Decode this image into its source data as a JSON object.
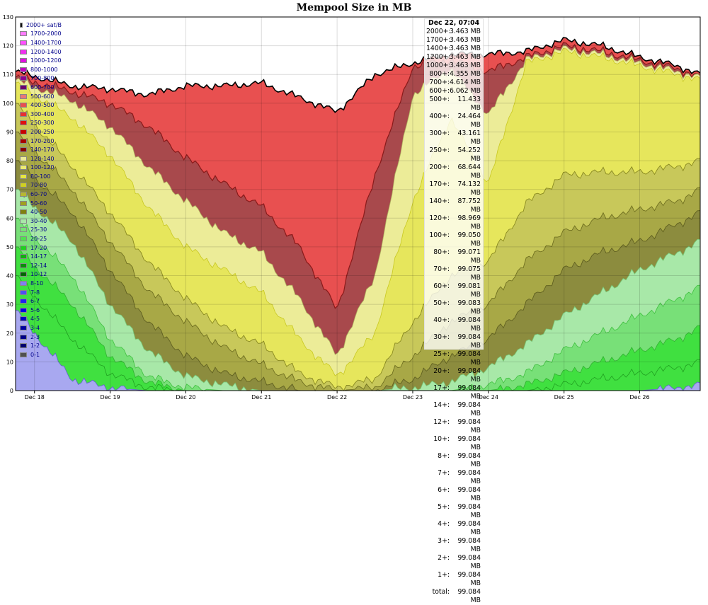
{
  "chart_data": {
    "type": "area",
    "title": "Mempool Size in MB",
    "ylim": [
      0,
      130
    ],
    "y_ticks": [
      0,
      10,
      20,
      30,
      40,
      50,
      60,
      70,
      80,
      90,
      100,
      110,
      120,
      130
    ],
    "x_tick_labels": [
      "Dec 18",
      "Dec 19",
      "Dec 20",
      "Dec 21",
      "Dec 22",
      "Dec 23",
      "Dec 24",
      "Dec 25",
      "Dec 26"
    ],
    "x_range_days": [
      17.75,
      26.8
    ],
    "grid": true,
    "legend_placement": "left",
    "stacked": true,
    "boundary_keypoints": {
      "x": [
        17.75,
        18.5,
        19.0,
        19.5,
        20.0,
        20.5,
        21.0,
        21.5,
        22.0,
        22.5,
        23.0,
        23.5,
        24.0,
        24.5,
        25.0,
        25.5,
        26.0,
        26.5,
        26.8
      ],
      "series": [
        {
          "key": "total",
          "values": [
            111,
            106,
            105,
            103,
            106,
            106,
            107,
            102,
            97,
            110,
            114,
            117,
            117,
            118,
            122,
            120,
            116,
            113,
            110
          ]
        },
        {
          "key": "f140",
          "values": [
            109,
            104,
            100,
            92,
            81,
            72,
            64,
            50,
            28,
            75,
            113,
            115,
            111,
            116,
            120,
            118,
            115,
            112,
            109
          ]
        },
        {
          "key": "f120",
          "values": [
            108,
            101,
            92,
            78,
            66,
            55,
            48,
            32,
            12,
            40,
            103,
            112,
            96,
            115,
            119,
            117,
            114,
            111,
            109
          ]
        },
        {
          "key": "f80",
          "values": [
            107,
            95,
            82,
            64,
            50,
            42,
            34,
            18,
            5,
            20,
            66,
            95,
            72,
            114,
            118,
            116,
            113,
            110,
            108
          ]
        },
        {
          "key": "f50",
          "values": [
            100,
            78,
            62,
            45,
            32,
            22,
            16,
            6,
            1,
            4,
            24,
            40,
            45,
            65,
            75,
            76,
            76,
            78,
            80
          ]
        },
        {
          "key": "f40",
          "values": [
            90,
            70,
            52,
            35,
            24,
            15,
            9,
            3,
            0,
            1,
            12,
            24,
            30,
            45,
            55,
            60,
            63,
            66,
            70
          ]
        },
        {
          "key": "f30",
          "values": [
            80,
            62,
            42,
            24,
            12,
            6,
            3,
            0,
            0,
            0,
            4,
            12,
            18,
            30,
            42,
            48,
            52,
            58,
            62
          ]
        },
        {
          "key": "f20",
          "values": [
            70,
            52,
            30,
            14,
            5,
            2,
            0,
            0,
            0,
            0,
            1,
            3,
            8,
            16,
            26,
            34,
            42,
            48,
            52
          ]
        },
        {
          "key": "f10",
          "values": [
            60,
            40,
            18,
            5,
            1,
            0,
            0,
            0,
            0,
            0,
            0,
            0,
            2,
            6,
            14,
            20,
            26,
            32,
            36
          ]
        },
        {
          "key": "f8",
          "values": [
            50,
            30,
            12,
            3,
            0,
            0,
            0,
            0,
            0,
            0,
            0,
            0,
            0,
            2,
            6,
            10,
            14,
            18,
            22
          ]
        },
        {
          "key": "f4",
          "values": [
            40,
            18,
            6,
            1,
            0,
            0,
            0,
            0,
            0,
            0,
            0,
            0,
            0,
            0,
            2,
            4,
            6,
            8,
            10
          ]
        },
        {
          "key": "f1",
          "values": [
            28,
            4,
            1,
            0,
            0,
            0,
            0,
            0,
            0,
            0,
            0,
            0,
            0,
            0,
            0,
            0,
            0,
            1,
            2
          ]
        }
      ]
    },
    "bands": [
      {
        "lower": "f140",
        "upper": "total",
        "color": "#e85050"
      },
      {
        "lower": "f120",
        "upper": "f140",
        "color": "#a8494c"
      },
      {
        "lower": "f80",
        "upper": "f120",
        "color": "#ecec98"
      },
      {
        "lower": "f50",
        "upper": "f80",
        "color": "#e6e65c"
      },
      {
        "lower": "f40",
        "upper": "f50",
        "color": "#c8c85a"
      },
      {
        "lower": "f30",
        "upper": "f40",
        "color": "#a8a846"
      },
      {
        "lower": "f20",
        "upper": "f30",
        "color": "#8c8c3e"
      },
      {
        "lower": "f10",
        "upper": "f20",
        "color": "#a8e8a8"
      },
      {
        "lower": "f8",
        "upper": "f10",
        "color": "#78e078"
      },
      {
        "lower": "f4",
        "upper": "f8",
        "color": "#40e040"
      },
      {
        "lower": "f1",
        "upper": "f4",
        "color": "#40e040"
      },
      {
        "lower": "zero",
        "upper": "f1",
        "color": "#a8a8f0"
      }
    ],
    "legend": [
      {
        "label": "2000+ sat/B",
        "color": "#111111"
      },
      {
        "label": "1700-2000",
        "color": "#ff7cff"
      },
      {
        "label": "1400-1700",
        "color": "#ff50ff"
      },
      {
        "label": "1200-1400",
        "color": "#f030f0"
      },
      {
        "label": "1000-1200",
        "color": "#e010e0"
      },
      {
        "label": "800-1000",
        "color": "#c000c0"
      },
      {
        "label": "700-800",
        "color": "#8e008e"
      },
      {
        "label": "600-700",
        "color": "#6e006e"
      },
      {
        "label": "500-600",
        "color": "#e87878"
      },
      {
        "label": "400-500",
        "color": "#e85050"
      },
      {
        "label": "300-400",
        "color": "#e83030"
      },
      {
        "label": "250-300",
        "color": "#e01010"
      },
      {
        "label": "200-250",
        "color": "#c80000"
      },
      {
        "label": "170-200",
        "color": "#a80000"
      },
      {
        "label": "140-170",
        "color": "#880000"
      },
      {
        "label": "120-140",
        "color": "#ecec98"
      },
      {
        "label": "100-120",
        "color": "#ecec70"
      },
      {
        "label": "80-100",
        "color": "#e6e640"
      },
      {
        "label": "70-80",
        "color": "#d0d020"
      },
      {
        "label": "60-70",
        "color": "#b8b830"
      },
      {
        "label": "50-60",
        "color": "#a0a020"
      },
      {
        "label": "40-50",
        "color": "#808010"
      },
      {
        "label": "30-40",
        "color": "#a8e8a8"
      },
      {
        "label": "25-30",
        "color": "#78e078"
      },
      {
        "label": "20-25",
        "color": "#50e050"
      },
      {
        "label": "17-20",
        "color": "#20d020"
      },
      {
        "label": "14-17",
        "color": "#10b010"
      },
      {
        "label": "12-14",
        "color": "#089008"
      },
      {
        "label": "10-12",
        "color": "#006800"
      },
      {
        "label": "8-10",
        "color": "#8080f0"
      },
      {
        "label": "7-8",
        "color": "#5050f0"
      },
      {
        "label": "6-7",
        "color": "#2020f0"
      },
      {
        "label": "5-6",
        "color": "#0000e0"
      },
      {
        "label": "4-5",
        "color": "#0000c0"
      },
      {
        "label": "3-4",
        "color": "#0000a0"
      },
      {
        "label": "2-3",
        "color": "#000088"
      },
      {
        "label": "1-2",
        "color": "#000070"
      },
      {
        "label": "0-1",
        "color": "#505050"
      }
    ]
  },
  "tooltip": {
    "header": "Dec 22, 07:04",
    "rows": [
      {
        "k": "2000+:",
        "v": "3.463 MB"
      },
      {
        "k": "1700+:",
        "v": "3.463 MB"
      },
      {
        "k": "1400+:",
        "v": "3.463 MB"
      },
      {
        "k": "1200+:",
        "v": "3.463 MB"
      },
      {
        "k": "1000+:",
        "v": "3.463 MB"
      },
      {
        "k": "800+:",
        "v": "4.355 MB"
      },
      {
        "k": "700+:",
        "v": "4.614 MB"
      },
      {
        "k": "600+:",
        "v": "6.062 MB"
      },
      {
        "k": "500+:",
        "v": "11.433 MB"
      },
      {
        "k": "400+:",
        "v": "24.464 MB"
      },
      {
        "k": "300+:",
        "v": "43.161 MB"
      },
      {
        "k": "250+:",
        "v": "54.252 MB"
      },
      {
        "k": "200+:",
        "v": "68.644 MB"
      },
      {
        "k": "170+:",
        "v": "74.132 MB"
      },
      {
        "k": "140+:",
        "v": "87.752 MB"
      },
      {
        "k": "120+:",
        "v": "98.969 MB"
      },
      {
        "k": "100+:",
        "v": "99.050 MB"
      },
      {
        "k": "80+:",
        "v": "99.071 MB"
      },
      {
        "k": "70+:",
        "v": "99.075 MB"
      },
      {
        "k": "60+:",
        "v": "99.081 MB"
      },
      {
        "k": "50+:",
        "v": "99.083 MB"
      },
      {
        "k": "40+:",
        "v": "99.084 MB"
      },
      {
        "k": "30+:",
        "v": "99.084 MB"
      },
      {
        "k": "25+:",
        "v": "99.084 MB"
      },
      {
        "k": "20+:",
        "v": "99.084 MB"
      },
      {
        "k": "17+:",
        "v": "99.084 MB"
      },
      {
        "k": "14+:",
        "v": "99.084 MB"
      },
      {
        "k": "12+:",
        "v": "99.084 MB"
      },
      {
        "k": "10+:",
        "v": "99.084 MB"
      },
      {
        "k": "8+:",
        "v": "99.084 MB"
      },
      {
        "k": "7+:",
        "v": "99.084 MB"
      },
      {
        "k": "6+:",
        "v": "99.084 MB"
      },
      {
        "k": "5+:",
        "v": "99.084 MB"
      },
      {
        "k": "4+:",
        "v": "99.084 MB"
      },
      {
        "k": "3+:",
        "v": "99.084 MB"
      },
      {
        "k": "2+:",
        "v": "99.084 MB"
      },
      {
        "k": "1+:",
        "v": "99.084 MB"
      },
      {
        "k": "total:",
        "v": "99.084 MB"
      }
    ]
  }
}
